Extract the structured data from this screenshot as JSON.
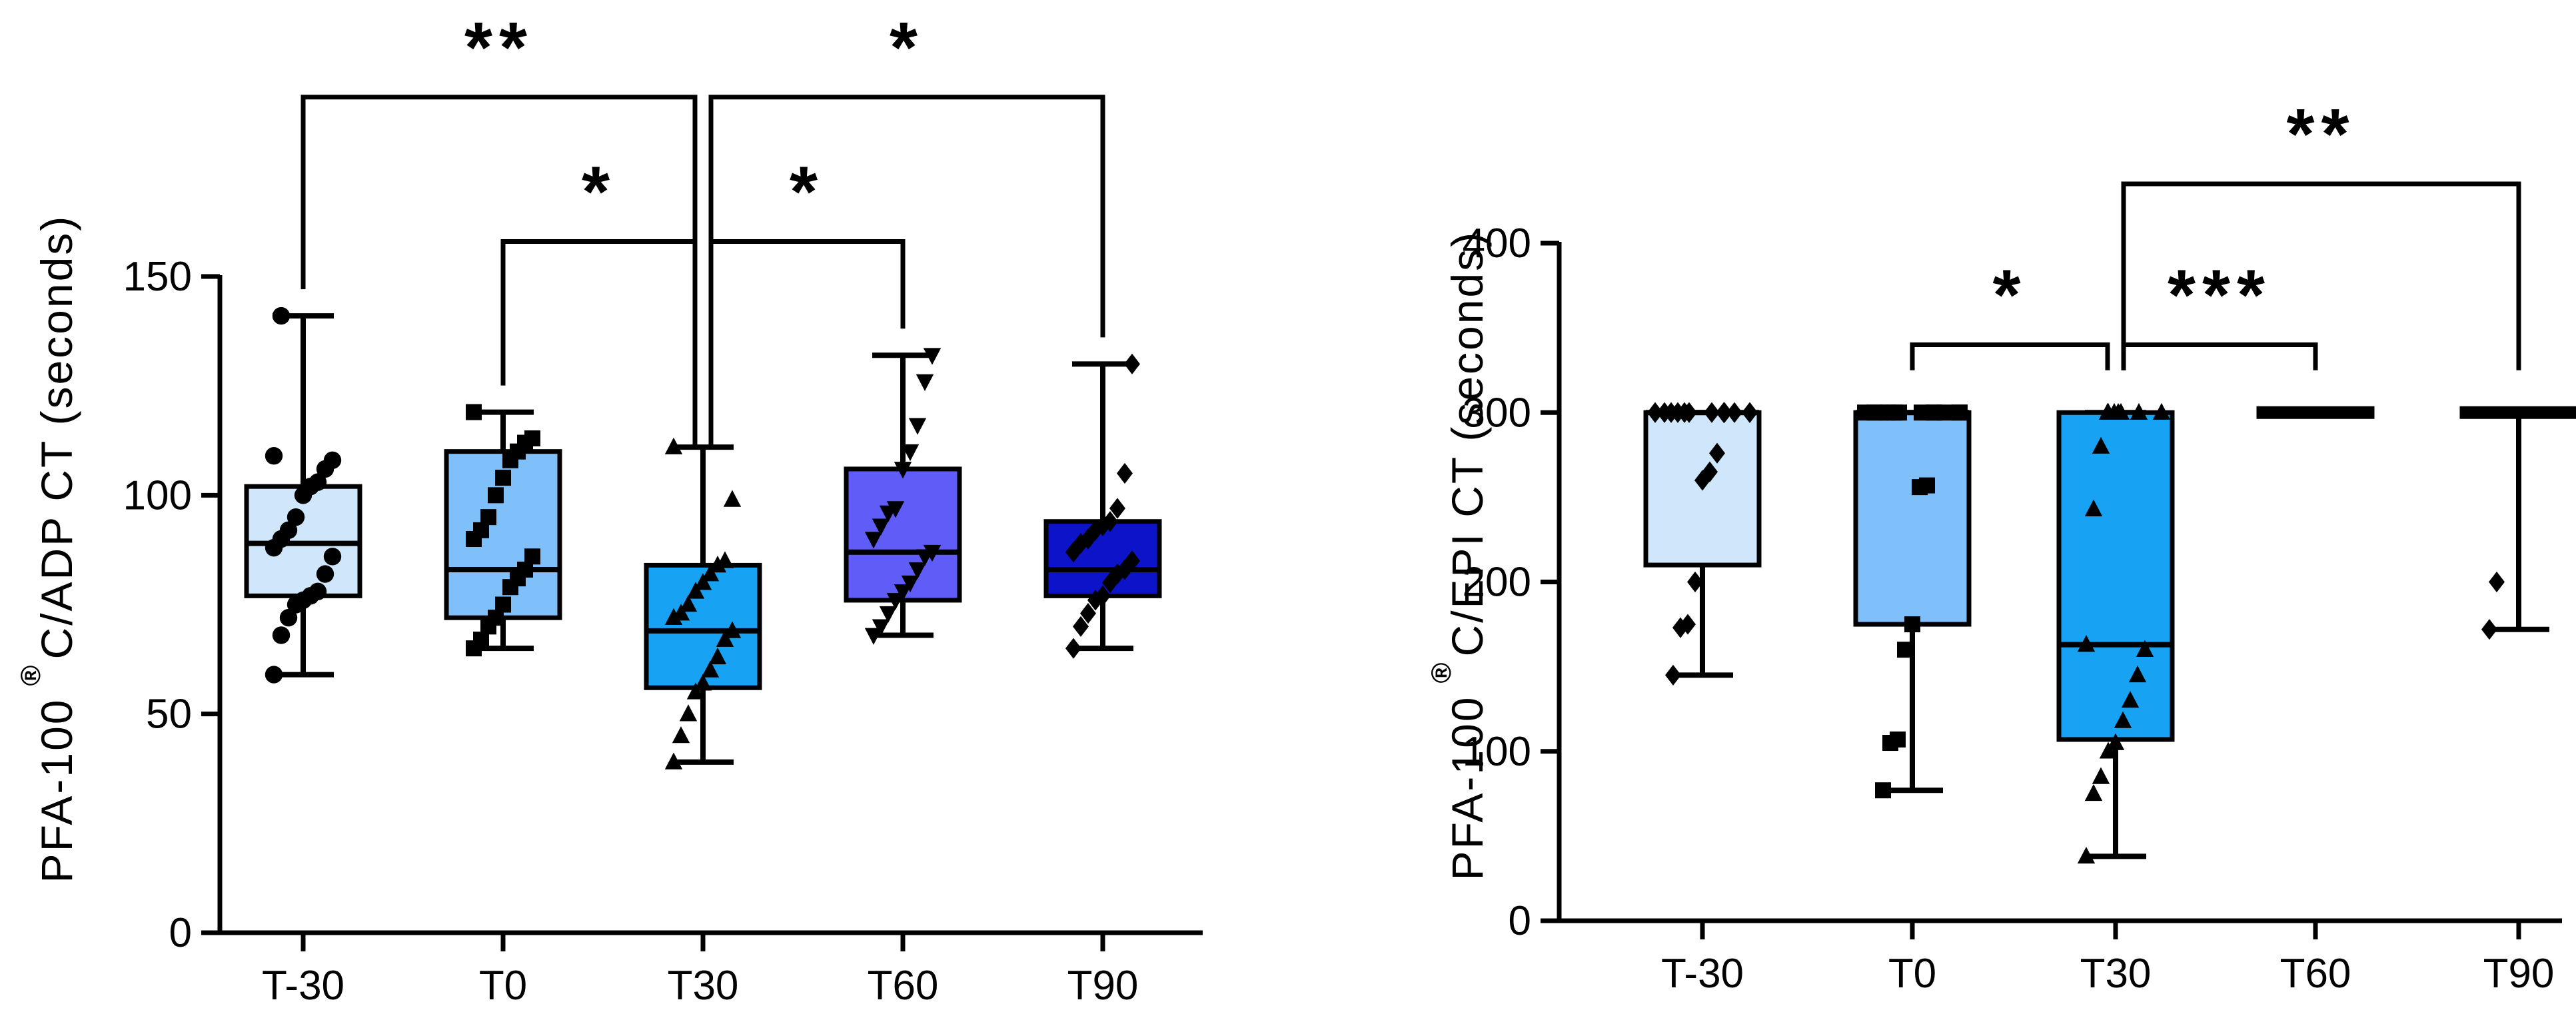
{
  "chart_data": [
    {
      "type": "box",
      "ylabel": "PFA-100 C/ADP CT (seconds)",
      "ylabel_prefix": "PFA-100",
      "ylabel_mark": "®",
      "ylabel_suffix": "C/ADP CT (seconds)",
      "ylim": [
        0,
        150
      ],
      "yticks": [
        0,
        50,
        100,
        150
      ],
      "ytick_labels": [
        "0",
        "50",
        "100",
        "150"
      ],
      "categories": [
        "T-30",
        "T0",
        "T30",
        "T60",
        "T90"
      ],
      "series": [
        {
          "name": "T-30",
          "color": "#cfe6fb",
          "marker": "circle",
          "min": 59,
          "q1": 77,
          "median": 89,
          "q3": 102,
          "max": 141,
          "points": [
            59,
            68,
            72,
            75,
            76,
            77,
            78,
            82,
            86,
            88,
            90,
            92,
            95,
            100,
            102,
            103,
            106,
            108,
            109,
            141
          ]
        },
        {
          "name": "T0",
          "color": "#80c0fa",
          "marker": "square",
          "min": 65,
          "q1": 72,
          "median": 83,
          "q3": 110,
          "max": 119,
          "points": [
            65,
            67,
            70,
            72,
            75,
            79,
            81,
            83,
            86,
            90,
            92,
            95,
            100,
            104,
            108,
            110,
            112,
            113,
            119
          ]
        },
        {
          "name": "T30",
          "color": "#17a2f3",
          "marker": "triangle-up",
          "min": 39,
          "q1": 56,
          "median": 69,
          "q3": 84,
          "max": 111,
          "points": [
            39,
            45,
            50,
            55,
            57,
            60,
            63,
            67,
            69,
            72,
            73,
            75,
            78,
            80,
            82,
            84,
            85,
            99,
            111
          ]
        },
        {
          "name": "T60",
          "color": "#5f5cf7",
          "marker": "triangle-down",
          "min": 68,
          "q1": 76,
          "median": 87,
          "q3": 106,
          "max": 132,
          "points": [
            68,
            70,
            73,
            76,
            78,
            80,
            83,
            86,
            87,
            90,
            93,
            96,
            97,
            106,
            110,
            116,
            126,
            132
          ]
        },
        {
          "name": "T90",
          "color": "#0d13c9",
          "marker": "diamond",
          "min": 65,
          "q1": 77,
          "median": 83,
          "q3": 94,
          "max": 130,
          "points": [
            65,
            70,
            73,
            76,
            77,
            80,
            82,
            83,
            85,
            87,
            89,
            90,
            92,
            93,
            94,
            97,
            105,
            130
          ]
        }
      ],
      "annotations": [
        {
          "from": "T-30",
          "to": "T30",
          "label": "**",
          "y": 191
        },
        {
          "from": "T30",
          "to": "T90",
          "label": "*",
          "y": 191
        },
        {
          "from": "T0",
          "to": "T30",
          "label": "*",
          "y": 158
        },
        {
          "from": "T30",
          "to": "T60",
          "label": "*",
          "y": 158
        }
      ]
    },
    {
      "type": "box",
      "ylabel": "PFA-100 C/EPI CT (seconds)",
      "ylabel_prefix": "PFA-100",
      "ylabel_mark": "®",
      "ylabel_suffix": "C/EPI CT (seconds)",
      "ylim": [
        0,
        400
      ],
      "yticks": [
        0,
        100,
        200,
        300,
        400
      ],
      "ytick_labels": [
        "0",
        "100",
        "200",
        "300",
        "400"
      ],
      "categories": [
        "T-30",
        "T0",
        "T30",
        "T60",
        "T90"
      ],
      "series": [
        {
          "name": "T-30",
          "color": "#cfe6fb",
          "marker": "diamond",
          "min": 145,
          "q1": 210,
          "median": 300,
          "q3": 300,
          "max": 300,
          "points": [
            145,
            173,
            175,
            200,
            260,
            265,
            276,
            300,
            300,
            300,
            300,
            300,
            300,
            300,
            300,
            300,
            300,
            300,
            300
          ]
        },
        {
          "name": "T0",
          "color": "#80c0fa",
          "marker": "square",
          "min": 77,
          "q1": 175,
          "median": 300,
          "q3": 300,
          "max": 300,
          "points": [
            77,
            105,
            107,
            160,
            175,
            256,
            257,
            300,
            300,
            300,
            300,
            300,
            300,
            300,
            300,
            300,
            300,
            300,
            300
          ]
        },
        {
          "name": "T30",
          "color": "#17a2f3",
          "marker": "triangle-up",
          "min": 38,
          "q1": 107,
          "median": 163,
          "q3": 300,
          "max": 300,
          "points": [
            38,
            75,
            85,
            100,
            105,
            118,
            130,
            145,
            160,
            163,
            243,
            280,
            300,
            300,
            300,
            300,
            300,
            300,
            300
          ]
        },
        {
          "name": "T60",
          "color": "#5f5cf7",
          "marker": "triangle-down",
          "min": 300,
          "q1": 300,
          "median": 300,
          "q3": 300,
          "max": 300,
          "points": []
        },
        {
          "name": "T90",
          "color": "#0d13c9",
          "marker": "diamond",
          "min": 172,
          "q1": 300,
          "median": 300,
          "q3": 300,
          "max": 300,
          "points": [
            172,
            200
          ]
        }
      ],
      "annotations": [
        {
          "from": "T0",
          "to": "T30",
          "label": "*",
          "y": 340
        },
        {
          "from": "T30",
          "to": "T60",
          "label": "***",
          "y": 340
        },
        {
          "from": "T30",
          "to": "T90",
          "label": "**",
          "y": 435
        }
      ]
    }
  ]
}
